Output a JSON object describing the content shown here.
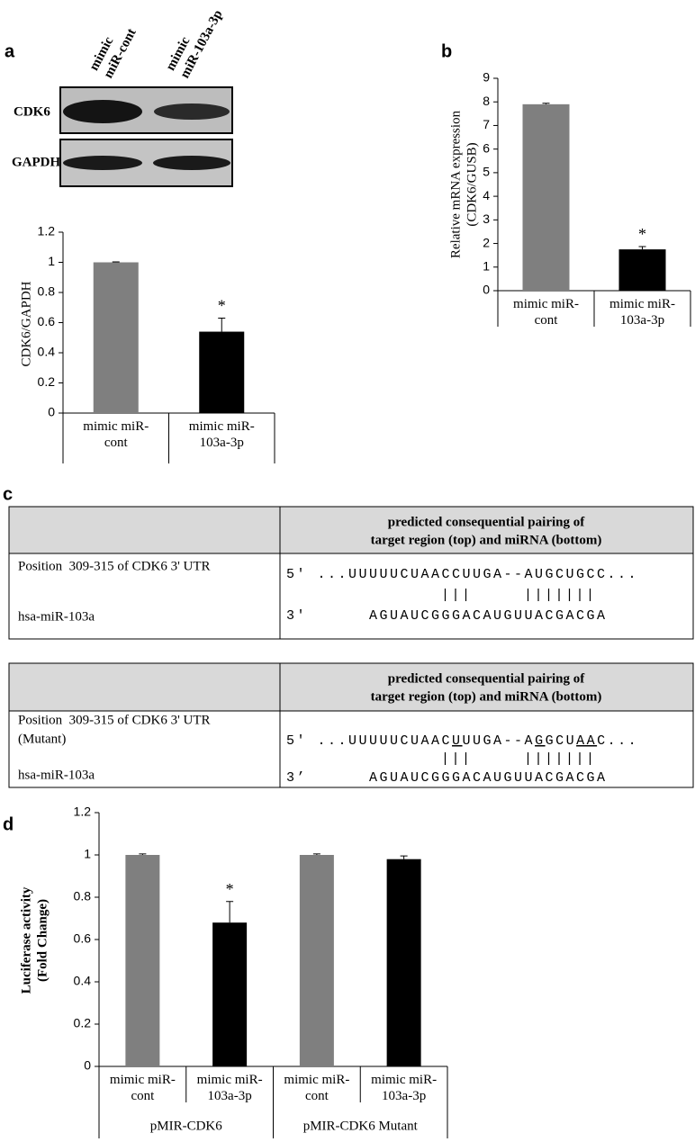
{
  "panel_labels": [
    "a",
    "b",
    "c",
    "d"
  ],
  "blot": {
    "columns": [
      [
        "mimic",
        "miR-cont"
      ],
      [
        "mimic",
        "miR-103a-3p"
      ]
    ],
    "rows": [
      "CDK6",
      "GAPDH"
    ]
  },
  "chart_data": [
    {
      "type": "bar",
      "y_label": "CDK6/GAPDH",
      "categories": [
        "mimic miR-cont",
        "mimic miR-103a-3p"
      ],
      "values": [
        1.0,
        0.54
      ],
      "errors": [
        0.003,
        0.09
      ],
      "colors": [
        "#7f7f7f",
        "#000000"
      ],
      "significance": [
        null,
        "*"
      ],
      "ylim": [
        0,
        1.2
      ],
      "yticks": [
        0,
        0.2,
        0.4,
        0.6,
        0.8,
        1,
        1.2
      ]
    },
    {
      "type": "bar",
      "y_label": [
        "Relative mRNA expression",
        "(CDK6/GUSB)"
      ],
      "categories": [
        "mimic miR-cont",
        "mimic miR-103a-3p"
      ],
      "values": [
        7.9,
        1.75
      ],
      "errors": [
        0.04,
        0.12
      ],
      "colors": [
        "#7f7f7f",
        "#000000"
      ],
      "significance": [
        null,
        "*"
      ],
      "ylim": [
        0,
        9
      ],
      "yticks": [
        0,
        1,
        2,
        3,
        4,
        5,
        6,
        7,
        8,
        9
      ]
    },
    {
      "type": "bar",
      "y_label": [
        "Luciferase activity",
        "(Fold Change)"
      ],
      "categories": [
        "mimic miR-cont",
        "mimic miR-103a-3p",
        "mimic miR-cont",
        "mimic miR-103a-3p"
      ],
      "groups": [
        "pMIR-CDK6",
        "pMIR-CDK6 Mutant"
      ],
      "values": [
        1.0,
        0.68,
        1.0,
        0.98
      ],
      "errors": [
        0.005,
        0.1,
        0.005,
        0.015
      ],
      "colors": [
        "#7f7f7f",
        "#000000",
        "#7f7f7f",
        "#000000"
      ],
      "significance": [
        null,
        "*",
        null,
        null
      ],
      "ylim": [
        0,
        1.2
      ],
      "yticks": [
        0,
        0.2,
        0.4,
        0.6,
        0.8,
        1,
        1.2
      ]
    }
  ],
  "tables": [
    {
      "header": [
        "predicted consequential pairing of",
        "target region (top) and miRNA (bottom)"
      ],
      "target_label": [
        "Position  309-315 of CDK6 3' UTR"
      ],
      "mirna_label": "hsa-miR-103a",
      "target_seq": [
        "5' ...UUUUUCUAACCUUGA--AUGCUGCC..."
      ],
      "pairing": "|||     |||||||",
      "mirna_seq": "3'      AGUAUCGGGACAUGUUACGACGA"
    },
    {
      "header": [
        "predicted consequential pairing of",
        "target region (top) and miRNA (bottom)"
      ],
      "target_label": [
        "Position  309-315 of CDK6 3' UTR",
        "(Mutant)"
      ],
      "mirna_label": "hsa-miR-103a",
      "target_seq": [
        "5' ...UUUUUCUAAC",
        "U",
        "UUGA--A",
        "G",
        "GCU",
        "AA",
        "C..."
      ],
      "pairing": "|||     |||||||",
      "mirna_seq": "3’      AGUAUCGGGACAUGUUACGACGA"
    }
  ]
}
